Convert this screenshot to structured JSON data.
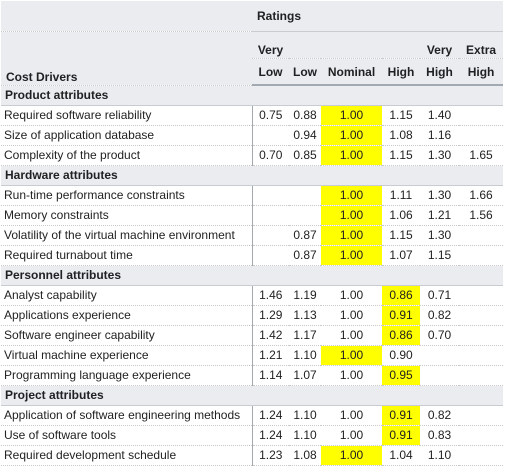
{
  "header": {
    "ratings": "Ratings",
    "cost_drivers": "Cost Drivers",
    "levels": [
      {
        "l1": "Very",
        "l2": "Low"
      },
      {
        "l1": "",
        "l2": "Low"
      },
      {
        "l1": "",
        "l2": "Nominal"
      },
      {
        "l1": "",
        "l2": "High"
      },
      {
        "l1": "Very",
        "l2": "High"
      },
      {
        "l1": "Extra",
        "l2": "High"
      }
    ]
  },
  "highlight_color": "#ffff00",
  "groups": [
    {
      "title": "Product attributes",
      "rows": [
        {
          "name": "Required software reliability",
          "vals": [
            "0.75",
            "0.88",
            "1.00",
            "1.15",
            "1.40",
            ""
          ],
          "hl": [
            2
          ]
        },
        {
          "name": "Size of application database",
          "vals": [
            "",
            "0.94",
            "1.00",
            "1.08",
            "1.16",
            ""
          ],
          "hl": [
            2
          ]
        },
        {
          "name": "Complexity of the product",
          "vals": [
            "0.70",
            "0.85",
            "1.00",
            "1.15",
            "1.30",
            "1.65"
          ],
          "hl": [
            2
          ]
        }
      ]
    },
    {
      "title": "Hardware attributes",
      "rows": [
        {
          "name": "Run-time performance constraints",
          "vals": [
            "",
            "",
            "1.00",
            "1.11",
            "1.30",
            "1.66"
          ],
          "hl": [
            2
          ]
        },
        {
          "name": "Memory constraints",
          "vals": [
            "",
            "",
            "1.00",
            "1.06",
            "1.21",
            "1.56"
          ],
          "hl": [
            2
          ]
        },
        {
          "name": "Volatility of the virtual machine environment",
          "vals": [
            "",
            "0.87",
            "1.00",
            "1.15",
            "1.30",
            ""
          ],
          "hl": [
            2
          ]
        },
        {
          "name": "Required turnabout time",
          "vals": [
            "",
            "0.87",
            "1.00",
            "1.07",
            "1.15",
            ""
          ],
          "hl": [
            2
          ]
        }
      ]
    },
    {
      "title": "Personnel attributes",
      "rows": [
        {
          "name": "Analyst capability",
          "vals": [
            "1.46",
            "1.19",
            "1.00",
            "0.86",
            "0.71",
            ""
          ],
          "hl": [
            3
          ]
        },
        {
          "name": "Applications experience",
          "vals": [
            "1.29",
            "1.13",
            "1.00",
            "0.91",
            "0.82",
            ""
          ],
          "hl": [
            3
          ]
        },
        {
          "name": "Software engineer capability",
          "vals": [
            "1.42",
            "1.17",
            "1.00",
            "0.86",
            "0.70",
            ""
          ],
          "hl": [
            3
          ]
        },
        {
          "name": "Virtual machine experience",
          "vals": [
            "1.21",
            "1.10",
            "1.00",
            "0.90",
            "",
            ""
          ],
          "hl": [
            2
          ]
        },
        {
          "name": "Programming language experience",
          "vals": [
            "1.14",
            "1.07",
            "1.00",
            "0.95",
            "",
            ""
          ],
          "hl": [
            3
          ]
        }
      ]
    },
    {
      "title": "Project attributes",
      "rows": [
        {
          "name": "Application of software engineering methods",
          "vals": [
            "1.24",
            "1.10",
            "1.00",
            "0.91",
            "0.82",
            ""
          ],
          "hl": [
            3
          ]
        },
        {
          "name": "Use of software tools",
          "vals": [
            "1.24",
            "1.10",
            "1.00",
            "0.91",
            "0.83",
            ""
          ],
          "hl": [
            3
          ]
        },
        {
          "name": "Required development schedule",
          "vals": [
            "1.23",
            "1.08",
            "1.00",
            "1.04",
            "1.10",
            ""
          ],
          "hl": [
            2
          ]
        }
      ]
    }
  ]
}
